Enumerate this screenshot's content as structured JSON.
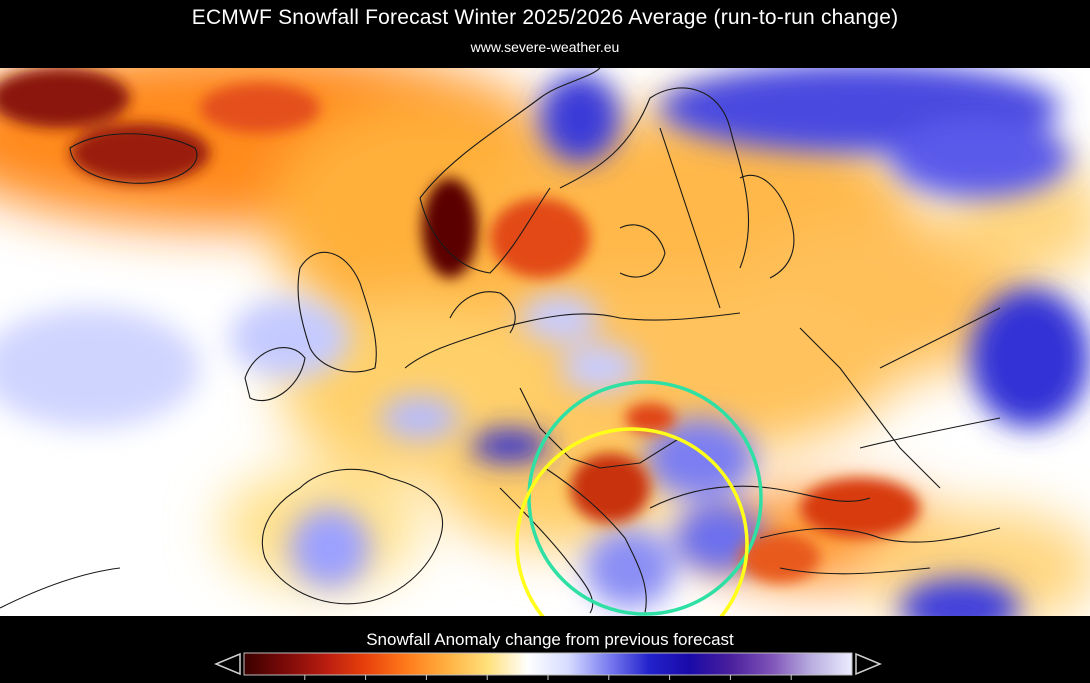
{
  "header": {
    "title": "ECMWF Snowfall Forecast   Winter 2025/2026 Average (run-to-run change)",
    "source": "www.severe-weather.eu"
  },
  "legend": {
    "label": "Snowfall Anomaly change from previous forecast",
    "ramp_colors": [
      "#3a0000",
      "#7a0a08",
      "#b81c10",
      "#e8410c",
      "#ff7a1a",
      "#ffb040",
      "#ffe07a",
      "#ffffff",
      "#d6dcff",
      "#7a7cf0",
      "#2222cc",
      "#1a0aa8",
      "#4a1f9c",
      "#7e52b8",
      "#b9aee0",
      "#ececff"
    ]
  },
  "annotations": {
    "circle_colors": [
      "#2ee0a4",
      "#ffff1a"
    ]
  },
  "colors": {
    "background": "#000000",
    "ocean_neutral": "#ffffff",
    "coastline": "#1a1a1a"
  }
}
